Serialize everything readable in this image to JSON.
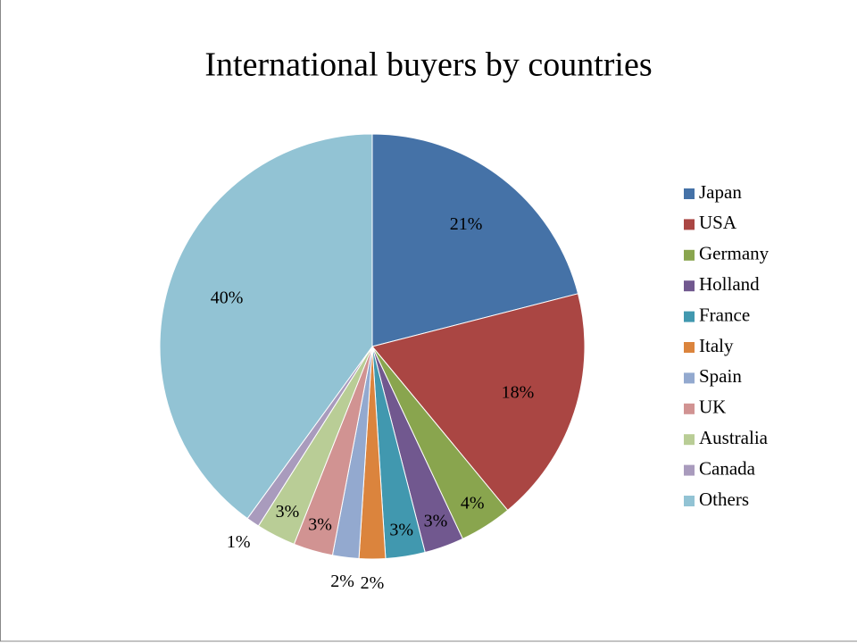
{
  "chart_data": {
    "type": "pie",
    "title": "International buyers by countries",
    "categories": [
      "Japan",
      "USA",
      "Germany",
      "Holland",
      "France",
      "Italy",
      "Spain",
      "UK",
      "Australia",
      "Canada",
      "Others"
    ],
    "values": [
      21,
      18,
      4,
      3,
      3,
      2,
      2,
      3,
      3,
      1,
      40
    ],
    "value_labels": [
      "21%",
      "18%",
      "4%",
      "3%",
      "3%",
      "2%",
      "2%",
      "3%",
      "3%",
      "1%",
      "40%"
    ],
    "colors": [
      "#4572a7",
      "#aa4643",
      "#89a54e",
      "#71588f",
      "#4198af",
      "#db843d",
      "#93a9cf",
      "#d19392",
      "#b9cd96",
      "#a99bbd",
      "#92c3d4"
    ],
    "legend": "right"
  }
}
